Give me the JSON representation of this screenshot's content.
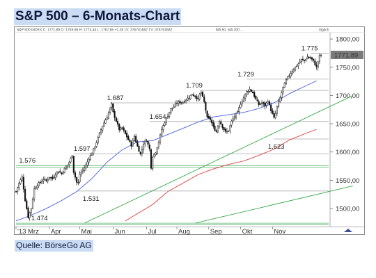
{
  "title": "S&P 500 – 6-Monats-Chart",
  "source": "Quelle: BörseGo AG",
  "chart_data": {
    "type": "candlestick",
    "header_info": "S&P 500 INDEX  C: 1771,89  O: 1769,96  H: 1773,44  L: 1767,85  +1,28  LV: 376761682  TV: 376761682",
    "header_legend": "MA 50, MA 200 ...",
    "header_right": "täglich",
    "ylim": [
      1468,
      1810
    ],
    "y_ticks": [
      1500,
      1550,
      1600,
      1650,
      1700,
      1750,
      1800
    ],
    "y_tick_labels": [
      "1500,00",
      "1550,00",
      "1600,00",
      "1650,00",
      "1700,00",
      "1750,00",
      "1800,00"
    ],
    "x_labels": [
      "'13 Mrz",
      "Apr",
      "Mai",
      "Jun",
      "Jul",
      "Aug",
      "Sep",
      "Okt",
      "Nov"
    ],
    "last_price": 1771.89,
    "last_price_label": "1771,89",
    "close_path": [
      [
        0,
        1530
      ],
      [
        2,
        1545
      ],
      [
        4,
        1556
      ],
      [
        6,
        1515
      ],
      [
        8,
        1485
      ],
      [
        10,
        1500
      ],
      [
        12,
        1535
      ],
      [
        14,
        1542
      ],
      [
        16,
        1546
      ],
      [
        18,
        1552
      ],
      [
        20,
        1549
      ],
      [
        22,
        1556
      ],
      [
        24,
        1553
      ],
      [
        26,
        1561
      ],
      [
        28,
        1566
      ],
      [
        30,
        1562
      ],
      [
        32,
        1570
      ],
      [
        34,
        1577
      ],
      [
        35,
        1582
      ],
      [
        36,
        1588
      ],
      [
        37,
        1595
      ],
      [
        38,
        1565
      ],
      [
        40,
        1546
      ],
      [
        41,
        1545
      ],
      [
        42,
        1561
      ],
      [
        44,
        1568
      ],
      [
        46,
        1576
      ],
      [
        48,
        1589
      ],
      [
        50,
        1598
      ],
      [
        52,
        1610
      ],
      [
        54,
        1625
      ],
      [
        56,
        1640
      ],
      [
        58,
        1652
      ],
      [
        60,
        1662
      ],
      [
        61,
        1670
      ],
      [
        62,
        1677
      ],
      [
        63,
        1684
      ],
      [
        64,
        1670
      ],
      [
        66,
        1655
      ],
      [
        68,
        1640
      ],
      [
        70,
        1642
      ],
      [
        72,
        1632
      ],
      [
        74,
        1622
      ],
      [
        76,
        1612
      ],
      [
        78,
        1628
      ],
      [
        80,
        1610
      ],
      [
        82,
        1596
      ],
      [
        84,
        1615
      ],
      [
        86,
        1621
      ],
      [
        88,
        1605
      ],
      [
        89,
        1573
      ],
      [
        90,
        1592
      ],
      [
        92,
        1600
      ],
      [
        94,
        1618
      ],
      [
        96,
        1640
      ],
      [
        98,
        1653
      ],
      [
        100,
        1665
      ],
      [
        102,
        1676
      ],
      [
        104,
        1680
      ],
      [
        106,
        1687
      ],
      [
        108,
        1688
      ],
      [
        110,
        1688
      ],
      [
        112,
        1693
      ],
      [
        114,
        1697
      ],
      [
        116,
        1702
      ],
      [
        118,
        1699
      ],
      [
        120,
        1693
      ],
      [
        121,
        1702
      ],
      [
        122,
        1705
      ],
      [
        124,
        1688
      ],
      [
        126,
        1660
      ],
      [
        128,
        1658
      ],
      [
        130,
        1644
      ],
      [
        132,
        1636
      ],
      [
        134,
        1656
      ],
      [
        136,
        1645
      ],
      [
        138,
        1635
      ],
      [
        140,
        1638
      ],
      [
        142,
        1654
      ],
      [
        144,
        1663
      ],
      [
        146,
        1670
      ],
      [
        148,
        1686
      ],
      [
        150,
        1696
      ],
      [
        152,
        1707
      ],
      [
        154,
        1711
      ],
      [
        156,
        1705
      ],
      [
        158,
        1693
      ],
      [
        160,
        1684
      ],
      [
        162,
        1687
      ],
      [
        164,
        1682
      ],
      [
        166,
        1691
      ],
      [
        168,
        1674
      ],
      [
        170,
        1660
      ],
      [
        171,
        1668
      ],
      [
        172,
        1680
      ],
      [
        174,
        1696
      ],
      [
        176,
        1714
      ],
      [
        178,
        1727
      ],
      [
        180,
        1736
      ],
      [
        182,
        1744
      ],
      [
        184,
        1750
      ],
      [
        186,
        1756
      ],
      [
        188,
        1763
      ],
      [
        190,
        1762
      ],
      [
        192,
        1768
      ],
      [
        194,
        1766
      ],
      [
        196,
        1761
      ],
      [
        198,
        1750
      ],
      [
        200,
        1770
      ],
      [
        201,
        1771.89
      ]
    ],
    "ma_blue": [
      [
        0,
        1478
      ],
      [
        10,
        1488
      ],
      [
        20,
        1500
      ],
      [
        30,
        1514
      ],
      [
        40,
        1530
      ],
      [
        50,
        1553
      ],
      [
        60,
        1582
      ],
      [
        70,
        1604
      ],
      [
        80,
        1618
      ],
      [
        90,
        1620
      ],
      [
        100,
        1631
      ],
      [
        110,
        1642
      ],
      [
        120,
        1653
      ],
      [
        130,
        1662
      ],
      [
        140,
        1666
      ],
      [
        150,
        1670
      ],
      [
        160,
        1677
      ],
      [
        170,
        1687
      ],
      [
        180,
        1703
      ],
      [
        190,
        1716
      ],
      [
        198,
        1726
      ]
    ],
    "ma_red": [
      [
        72,
        1478
      ],
      [
        80,
        1491
      ],
      [
        90,
        1507
      ],
      [
        100,
        1530
      ],
      [
        110,
        1545
      ],
      [
        120,
        1560
      ],
      [
        130,
        1570
      ],
      [
        140,
        1578
      ],
      [
        150,
        1584
      ],
      [
        160,
        1594
      ],
      [
        170,
        1605
      ],
      [
        180,
        1621
      ],
      [
        190,
        1632
      ],
      [
        198,
        1640
      ]
    ],
    "trendlines": [
      {
        "from": [
          45,
          1474
        ],
        "to": [
          222,
          1700
        ],
        "color": "#36a84a"
      },
      {
        "from": [
          118,
          1474
        ],
        "to": [
          222,
          1540
        ],
        "color": "#36a84a"
      }
    ],
    "horizontal_levels": [
      {
        "value": 1576,
        "x_from": 0,
        "x_to": 206,
        "color": "#59b56a",
        "double": true
      },
      {
        "value": 1474,
        "x_from": 0,
        "x_to": 206,
        "color": "#59b56a",
        "double": true
      },
      {
        "value": 1531,
        "x_from": 40,
        "x_to": 206,
        "color": "#a9a9a9"
      },
      {
        "value": 1597,
        "x_from": 38,
        "x_to": 206,
        "color": "#a9a9a9"
      },
      {
        "value": 1623,
        "x_from": 170,
        "x_to": 206,
        "color": "#a9a9a9"
      },
      {
        "value": 1654,
        "x_from": 88,
        "x_to": 206,
        "color": "#a9a9a9"
      },
      {
        "value": 1687,
        "x_from": 62,
        "x_to": 206,
        "color": "#a9a9a9"
      },
      {
        "value": 1709,
        "x_from": 122,
        "x_to": 206,
        "color": "#a9a9a9"
      },
      {
        "value": 1729,
        "x_from": 152,
        "x_to": 206,
        "color": "#a9a9a9"
      },
      {
        "value": 1775,
        "x_from": 194,
        "x_to": 206,
        "color": "#a9a9a9"
      }
    ],
    "annotations": [
      {
        "text": "1.775",
        "x": 188,
        "y": 1775
      },
      {
        "text": "1.729",
        "x": 146,
        "y": 1729
      },
      {
        "text": "1.709",
        "x": 112,
        "y": 1709
      },
      {
        "text": "1.687",
        "x": 60,
        "y": 1687
      },
      {
        "text": "1.654",
        "x": 88,
        "y": 1654
      },
      {
        "text": "1.623",
        "x": 166,
        "y": 1623
      },
      {
        "text": "1.597",
        "x": 38,
        "y": 1597
      },
      {
        "text": "1.576",
        "x": 2,
        "y": 1576
      },
      {
        "text": "1.531",
        "x": 44,
        "y": 1531
      },
      {
        "text": "1.474",
        "x": 10,
        "y": 1474
      }
    ],
    "colors": {
      "candles": "#111111",
      "ma_blue": "#5a6fe0",
      "ma_red": "#e05050",
      "trend_green": "#36a84a",
      "grid": "#cfcfcf",
      "price_box": "#7a7a7a"
    }
  }
}
